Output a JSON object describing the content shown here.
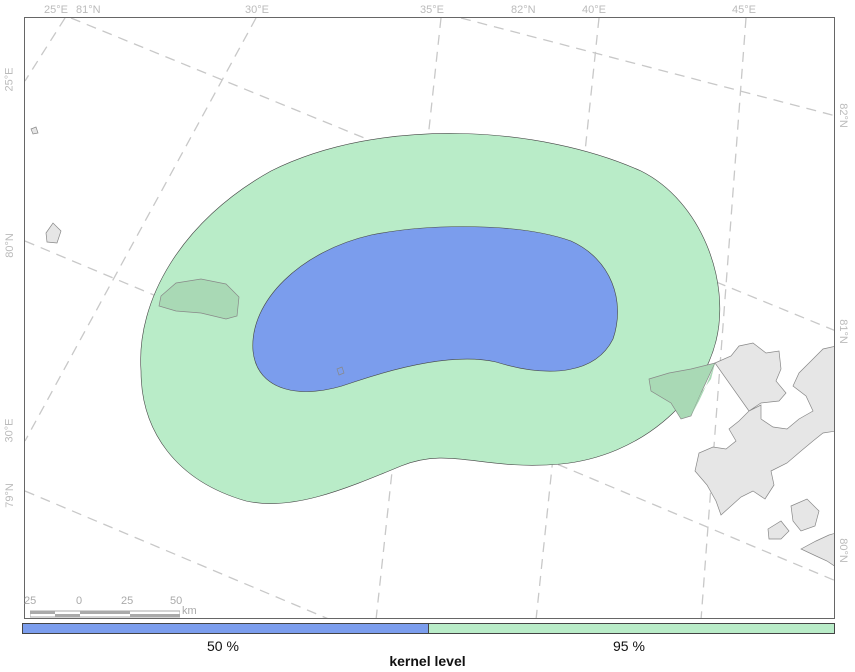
{
  "map": {
    "colors": {
      "kernel_50": "#7b9ded",
      "kernel_95": "#b9ecc8",
      "land": "#e6e6e6",
      "graticule": "#c8c8c8"
    },
    "graticule_labels": {
      "top": [
        "25°E",
        "81°N",
        "30°E",
        "35°E",
        "82°N",
        "40°E",
        "45°E"
      ],
      "left": [
        "25°E",
        "80°N",
        "30°E",
        "79°N"
      ],
      "right": [
        "82°N",
        "81°N",
        "80°N"
      ]
    },
    "scale_bar": {
      "ticks": [
        "25",
        "0",
        "25",
        "50"
      ],
      "unit": "km"
    }
  },
  "legend": {
    "title": "kernel level",
    "items": [
      {
        "label": "50 %",
        "color": "#7b9ded"
      },
      {
        "label": "95 %",
        "color": "#b9ecc8"
      }
    ]
  }
}
